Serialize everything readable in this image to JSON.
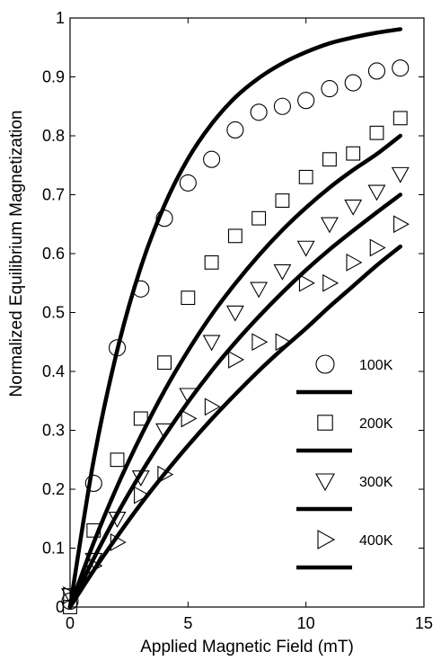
{
  "chart_data": {
    "type": "scatter",
    "xlabel": "Applied Magnetic Field (mT)",
    "ylabel": "Normalized Equilibrium Magnetization",
    "xlim": [
      0,
      15
    ],
    "ylim": [
      0,
      1
    ],
    "xticks": [
      "0",
      "5",
      "10",
      "15"
    ],
    "yticks": [
      "0",
      "0.1",
      "0.2",
      "0.3",
      "0.4",
      "0.5",
      "0.6",
      "0.7",
      "0.8",
      "0.9",
      "1"
    ],
    "grid": false,
    "legend_position": "lower-right",
    "series": [
      {
        "name": "100K",
        "marker": "circle",
        "points": [
          [
            0,
            0.01
          ],
          [
            1,
            0.21
          ],
          [
            2,
            0.44
          ],
          [
            3,
            0.54
          ],
          [
            4,
            0.66
          ],
          [
            5,
            0.72
          ],
          [
            6,
            0.76
          ],
          [
            7,
            0.81
          ],
          [
            8,
            0.84
          ],
          [
            9,
            0.85
          ],
          [
            10,
            0.86
          ],
          [
            11,
            0.88
          ],
          [
            12,
            0.89
          ],
          [
            13,
            0.91
          ],
          [
            14,
            0.915
          ]
        ],
        "fit": [
          [
            0,
            0
          ],
          [
            1,
            0.249
          ],
          [
            2,
            0.436
          ],
          [
            3,
            0.577
          ],
          [
            4,
            0.682
          ],
          [
            5,
            0.761
          ],
          [
            6,
            0.82
          ],
          [
            7,
            0.865
          ],
          [
            8,
            0.898
          ],
          [
            9,
            0.923
          ],
          [
            10,
            0.942
          ],
          [
            11,
            0.957
          ],
          [
            12,
            0.967
          ],
          [
            13,
            0.975
          ],
          [
            14,
            0.981
          ]
        ]
      },
      {
        "name": "200K",
        "marker": "square",
        "points": [
          [
            0,
            0.0
          ],
          [
            1,
            0.13
          ],
          [
            2,
            0.25
          ],
          [
            3,
            0.32
          ],
          [
            4,
            0.415
          ],
          [
            5,
            0.525
          ],
          [
            6,
            0.585
          ],
          [
            7,
            0.63
          ],
          [
            8,
            0.66
          ],
          [
            9,
            0.69
          ],
          [
            10,
            0.73
          ],
          [
            11,
            0.76
          ],
          [
            12,
            0.77
          ],
          [
            13,
            0.805
          ],
          [
            14,
            0.83
          ]
        ],
        "fit": [
          [
            0,
            0
          ],
          [
            1,
            0.109
          ],
          [
            2,
            0.205
          ],
          [
            3,
            0.29
          ],
          [
            4,
            0.367
          ],
          [
            5,
            0.435
          ],
          [
            6,
            0.496
          ],
          [
            7,
            0.549
          ],
          [
            8,
            0.597
          ],
          [
            9,
            0.64
          ],
          [
            10,
            0.678
          ],
          [
            11,
            0.712
          ],
          [
            12,
            0.742
          ],
          [
            13,
            0.769
          ],
          [
            14,
            0.8
          ]
        ]
      },
      {
        "name": "300K",
        "marker": "triangle-down",
        "points": [
          [
            0,
            0.02
          ],
          [
            1,
            0.08
          ],
          [
            2,
            0.15
          ],
          [
            3,
            0.22
          ],
          [
            4,
            0.3
          ],
          [
            5,
            0.36
          ],
          [
            6,
            0.45
          ],
          [
            7,
            0.5
          ],
          [
            8,
            0.54
          ],
          [
            9,
            0.57
          ],
          [
            10,
            0.61
          ],
          [
            11,
            0.65
          ],
          [
            12,
            0.68
          ],
          [
            13,
            0.705
          ],
          [
            14,
            0.735
          ]
        ],
        "fit": [
          [
            0,
            0
          ],
          [
            1,
            0.082
          ],
          [
            2,
            0.158
          ],
          [
            3,
            0.227
          ],
          [
            4,
            0.29
          ],
          [
            5,
            0.348
          ],
          [
            6,
            0.401
          ],
          [
            7,
            0.449
          ],
          [
            8,
            0.493
          ],
          [
            9,
            0.534
          ],
          [
            10,
            0.572
          ],
          [
            11,
            0.607
          ],
          [
            12,
            0.639
          ],
          [
            13,
            0.67
          ],
          [
            14,
            0.7
          ]
        ]
      },
      {
        "name": "400K",
        "marker": "triangle-right",
        "points": [
          [
            0,
            0.02
          ],
          [
            1,
            0.07
          ],
          [
            2,
            0.11
          ],
          [
            3,
            0.19
          ],
          [
            4,
            0.225
          ],
          [
            5,
            0.32
          ],
          [
            6,
            0.34
          ],
          [
            7,
            0.42
          ],
          [
            8,
            0.45
          ],
          [
            9,
            0.45
          ],
          [
            10,
            0.55
          ],
          [
            11,
            0.55
          ],
          [
            12,
            0.585
          ],
          [
            13,
            0.61
          ],
          [
            14,
            0.65
          ]
        ],
        "fit": [
          [
            0,
            0
          ],
          [
            1,
            0.062
          ],
          [
            2,
            0.12
          ],
          [
            3,
            0.175
          ],
          [
            4,
            0.226
          ],
          [
            5,
            0.274
          ],
          [
            6,
            0.319
          ],
          [
            7,
            0.361
          ],
          [
            8,
            0.401
          ],
          [
            9,
            0.438
          ],
          [
            10,
            0.473
          ],
          [
            11,
            0.51
          ],
          [
            12,
            0.545
          ],
          [
            13,
            0.58
          ],
          [
            14,
            0.612
          ]
        ]
      }
    ]
  }
}
